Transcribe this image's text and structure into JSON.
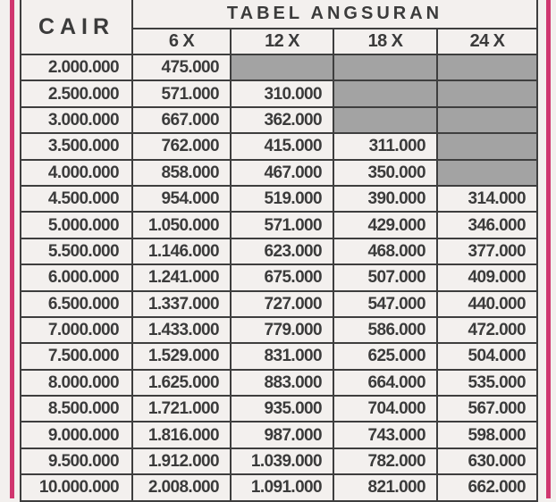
{
  "header": {
    "cair_label": "CAIR",
    "title": "TABEL ANGSURAN",
    "columns": [
      "6 X",
      "12 X",
      "18 X",
      "24 X"
    ]
  },
  "accent_color": "#d0366f",
  "unavailable_cell_color": "#a3a3a3",
  "rows": [
    {
      "cair": "2.000.000",
      "values": [
        "475.000",
        null,
        null,
        null
      ]
    },
    {
      "cair": "2.500.000",
      "values": [
        "571.000",
        "310.000",
        null,
        null
      ]
    },
    {
      "cair": "3.000.000",
      "values": [
        "667.000",
        "362.000",
        null,
        null
      ]
    },
    {
      "cair": "3.500.000",
      "values": [
        "762.000",
        "415.000",
        "311.000",
        null
      ]
    },
    {
      "cair": "4.000.000",
      "values": [
        "858.000",
        "467.000",
        "350.000",
        null
      ]
    },
    {
      "cair": "4.500.000",
      "values": [
        "954.000",
        "519.000",
        "390.000",
        "314.000"
      ]
    },
    {
      "cair": "5.000.000",
      "values": [
        "1.050.000",
        "571.000",
        "429.000",
        "346.000"
      ]
    },
    {
      "cair": "5.500.000",
      "values": [
        "1.146.000",
        "623.000",
        "468.000",
        "377.000"
      ]
    },
    {
      "cair": "6.000.000",
      "values": [
        "1.241.000",
        "675.000",
        "507.000",
        "409.000"
      ]
    },
    {
      "cair": "6.500.000",
      "values": [
        "1.337.000",
        "727.000",
        "547.000",
        "440.000"
      ]
    },
    {
      "cair": "7.000.000",
      "values": [
        "1.433.000",
        "779.000",
        "586.000",
        "472.000"
      ]
    },
    {
      "cair": "7.500.000",
      "values": [
        "1.529.000",
        "831.000",
        "625.000",
        "504.000"
      ]
    },
    {
      "cair": "8.000.000",
      "values": [
        "1.625.000",
        "883.000",
        "664.000",
        "535.000"
      ]
    },
    {
      "cair": "8.500.000",
      "values": [
        "1.721.000",
        "935.000",
        "704.000",
        "567.000"
      ]
    },
    {
      "cair": "9.000.000",
      "values": [
        "1.816.000",
        "987.000",
        "743.000",
        "598.000"
      ]
    },
    {
      "cair": "9.500.000",
      "values": [
        "1.912.000",
        "1.039.000",
        "782.000",
        "630.000"
      ]
    },
    {
      "cair": "10.000.000",
      "values": [
        "2.008.000",
        "1.091.000",
        "821.000",
        "662.000"
      ]
    }
  ]
}
